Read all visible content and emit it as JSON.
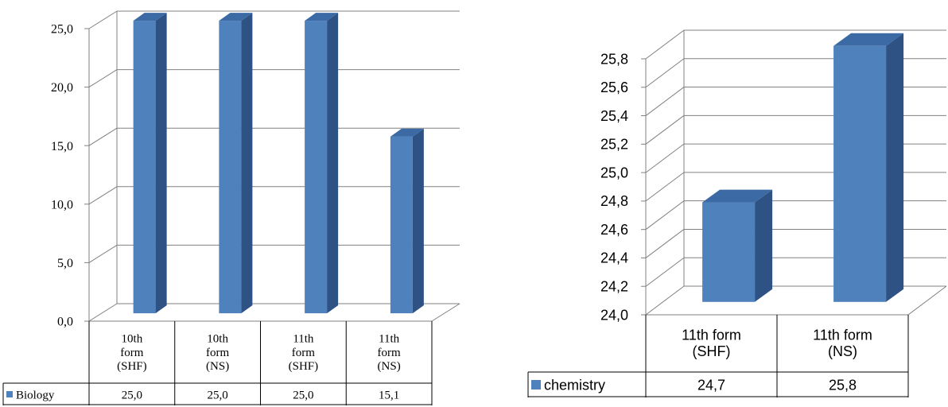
{
  "chart_data": [
    {
      "type": "bar",
      "title": "",
      "xlabel": "",
      "ylabel": "",
      "categories": [
        [
          "10th",
          "form",
          "(SHF)"
        ],
        [
          "10th",
          "form",
          "(NS)"
        ],
        [
          "11th",
          "form",
          "(SHF)"
        ],
        [
          "11th",
          "form",
          "(NS)"
        ]
      ],
      "series": [
        {
          "name": "Biology",
          "values": [
            25.0,
            25.0,
            25.0,
            15.1
          ],
          "labels": [
            "25,0",
            "25,0",
            "25,0",
            "15,1"
          ],
          "color": "#4f81bd"
        }
      ],
      "ylim": [
        0,
        25
      ],
      "yticks": [
        "0,0",
        "5,0",
        "10,0",
        "15,0",
        "20,0",
        "25,0"
      ],
      "grid": true,
      "legend": "data-table",
      "style": "3d-column"
    },
    {
      "type": "bar",
      "title": "",
      "xlabel": "",
      "ylabel": "",
      "categories": [
        [
          "11th form",
          "(SHF)"
        ],
        [
          "11th form",
          "(NS)"
        ]
      ],
      "series": [
        {
          "name": "chemistry",
          "values": [
            24.7,
            25.8
          ],
          "labels": [
            "24,7",
            "25,8"
          ],
          "color": "#4f81bd"
        }
      ],
      "ylim": [
        24.0,
        25.8
      ],
      "yticks": [
        "24,0",
        "24,2",
        "24,4",
        "24,6",
        "24,8",
        "25,0",
        "25,2",
        "25,4",
        "25,6",
        "25,8"
      ],
      "grid": true,
      "legend": "data-table",
      "style": "3d-column"
    }
  ],
  "colors": {
    "bar_front": "#4f81bd",
    "bar_side": "#2e5284",
    "bar_top": "#3b6aa4",
    "grid": "#808080",
    "text": "#000000"
  }
}
